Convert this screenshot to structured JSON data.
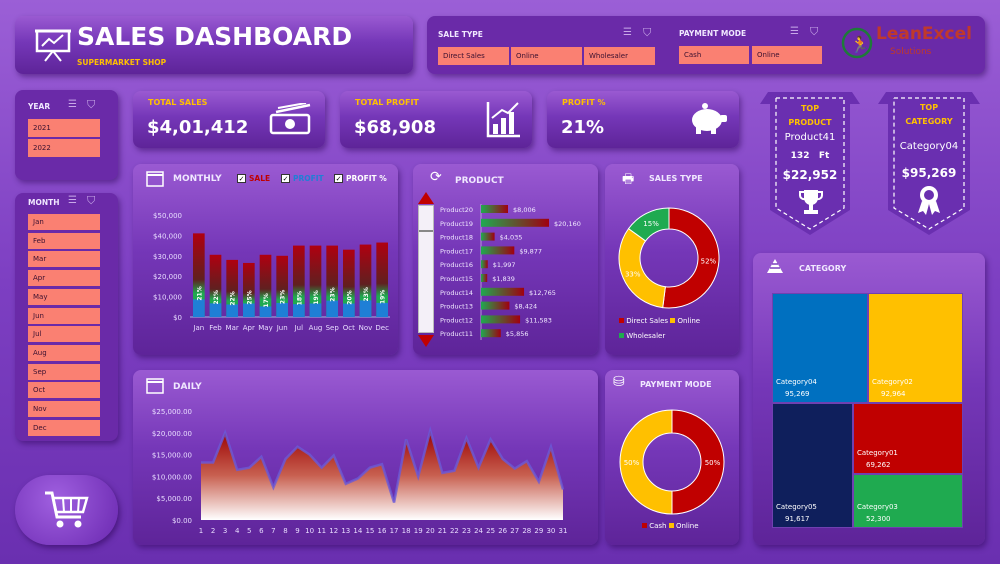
{
  "header": {
    "title": "SALES DASHBOARD",
    "subtitle": "SUPERMARKET SHOP"
  },
  "slicers": {
    "sale_type": {
      "label": "SALE TYPE",
      "options": [
        "Direct Sales",
        "Online",
        "Wholesaler"
      ]
    },
    "payment_mode": {
      "label": "PAYMENT MODE",
      "options": [
        "Cash",
        "Online"
      ]
    },
    "year": {
      "label": "YEAR",
      "options": [
        "2021",
        "2022"
      ]
    },
    "month": {
      "label": "MONTH",
      "options": [
        "Jan",
        "Feb",
        "Mar",
        "Apr",
        "May",
        "Jun",
        "Jul",
        "Aug",
        "Sep",
        "Oct",
        "Nov",
        "Dec"
      ]
    }
  },
  "logo": {
    "text": "LeanExcel",
    "sub": "Solutions"
  },
  "kpis": [
    {
      "title": "TOTAL SALES",
      "value": "$4,01,412"
    },
    {
      "title": "TOTAL PROFIT",
      "value": "$68,908"
    },
    {
      "title": "PROFIT %",
      "value": "21%"
    }
  ],
  "top_product": {
    "line1": "TOP",
    "line2": "PRODUCT",
    "name": "Product41",
    "qty": "132",
    "unit": "Ft",
    "value": "$22,952"
  },
  "top_category": {
    "line1": "TOP",
    "line2": "CATEGORY",
    "name": "Category04",
    "value": "$95,269"
  },
  "colors": {
    "sale": "#c00000",
    "profit": "#1f7fd6",
    "green": "#1faa50",
    "yellow": "#ffc000",
    "accent": "#ffc000"
  },
  "chart_data": [
    {
      "id": "monthly",
      "type": "bar",
      "title": "MONTHLY",
      "legend": [
        "SALE",
        "PROFIT",
        "PROFIT %"
      ],
      "categories": [
        "Jan",
        "Feb",
        "Mar",
        "Apr",
        "May",
        "Jun",
        "Jul",
        "Aug",
        "Sep",
        "Oct",
        "Nov",
        "Dec"
      ],
      "yticks": [
        "$0",
        "$10,000",
        "$20,000",
        "$30,000",
        "$40,000",
        "$50,000"
      ],
      "ylim": [
        0,
        50000
      ],
      "series": [
        {
          "name": "SALE",
          "values": [
            41000,
            30500,
            28000,
            26500,
            30500,
            30000,
            35000,
            35000,
            35000,
            33000,
            35500,
            36500
          ]
        },
        {
          "name": "PROFIT %",
          "values": [
            "21%",
            "22%",
            "22%",
            "25%",
            "17%",
            "23%",
            "18%",
            "19%",
            "23%",
            "20%",
            "23%",
            "19%"
          ]
        }
      ]
    },
    {
      "id": "product",
      "type": "bar",
      "title": "PRODUCT",
      "categories": [
        "Product20",
        "Product19",
        "Product18",
        "Product17",
        "Product16",
        "Product15",
        "Product14",
        "Product13",
        "Product12",
        "Product11"
      ],
      "values": [
        8006,
        20160,
        4035,
        9877,
        1997,
        1839,
        12765,
        8424,
        11583,
        5856
      ],
      "labels": [
        "$8,006",
        "$20,160",
        "$4,035",
        "$9,877",
        "$1,997",
        "$1,839",
        "$12,765",
        "$8,424",
        "$11,583",
        "$5,856"
      ]
    },
    {
      "id": "sales_type",
      "type": "pie",
      "title": "SALES TYPE",
      "categories": [
        "Direct Sales",
        "Online",
        "Wholesaler"
      ],
      "values": [
        52,
        33,
        15
      ],
      "labels": [
        "52%",
        "33%",
        "15%"
      ]
    },
    {
      "id": "payment_mode",
      "type": "pie",
      "title": "PAYMENT MODE",
      "categories": [
        "Cash",
        "Online"
      ],
      "values": [
        50,
        50
      ],
      "labels": [
        "50%",
        "50%"
      ]
    },
    {
      "id": "daily",
      "type": "area",
      "title": "DAILY",
      "x": [
        1,
        2,
        3,
        4,
        5,
        6,
        7,
        8,
        9,
        10,
        11,
        12,
        13,
        14,
        15,
        16,
        17,
        18,
        19,
        20,
        21,
        22,
        23,
        24,
        25,
        26,
        27,
        28,
        29,
        30,
        31
      ],
      "values": [
        13200,
        13200,
        20000,
        11500,
        12000,
        14500,
        7500,
        14000,
        16800,
        15000,
        12000,
        14800,
        8300,
        9500,
        12000,
        12800,
        4000,
        18500,
        10000,
        20500,
        10800,
        11300,
        18800,
        12000,
        18500,
        14000,
        11800,
        13500,
        8800,
        16800,
        7000
      ],
      "yticks": [
        "$0.00",
        "$5,000.00",
        "$10,000.00",
        "$15,000.00",
        "$20,000.00",
        "$25,000.00"
      ],
      "ylim": [
        0,
        25000
      ]
    },
    {
      "id": "category",
      "type": "heatmap",
      "title": "CATEGORY",
      "categories": [
        "Category04",
        "Category02",
        "Category05",
        "Category01",
        "Category03"
      ],
      "values": [
        95269,
        92964,
        91617,
        69262,
        52300
      ],
      "labels": [
        "95,269",
        "92,964",
        "91,617",
        "69,262",
        "52,300"
      ]
    }
  ]
}
